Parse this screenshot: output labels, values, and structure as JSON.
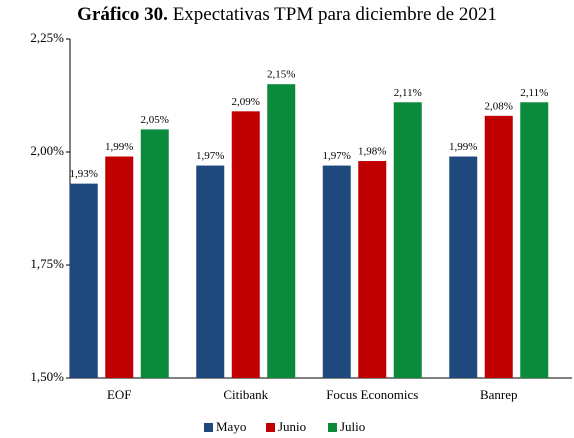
{
  "chart_data": {
    "type": "bar",
    "figure_label": "Gráfico 30.",
    "title": "Expectativas TPM para diciembre de 2021",
    "categories": [
      "EOF",
      "Citibank",
      "Focus Economics",
      "Banrep"
    ],
    "series": [
      {
        "name": "Mayo",
        "color": "#1f497d",
        "values": [
          1.93,
          1.97,
          1.97,
          1.99
        ],
        "value_labels": [
          "1,93%",
          "1,97%",
          "1,97%",
          "1,99%"
        ]
      },
      {
        "name": "Junio",
        "color": "#c00000",
        "values": [
          1.99,
          2.09,
          1.98,
          2.08
        ],
        "value_labels": [
          "1,99%",
          "2,09%",
          "1,98%",
          "2,08%"
        ]
      },
      {
        "name": "Julio",
        "color": "#0b8a3c",
        "values": [
          2.05,
          2.15,
          2.11,
          2.11
        ],
        "value_labels": [
          "2,05%",
          "2,15%",
          "2,11%",
          "2,11%"
        ]
      }
    ],
    "ylim": [
      1.5,
      2.25
    ],
    "yticks": [
      {
        "value": 1.5,
        "label": "1,50%"
      },
      {
        "value": 1.75,
        "label": "1,75%"
      },
      {
        "value": 2.0,
        "label": "2,00%"
      },
      {
        "value": 2.25,
        "label": "2,25%"
      }
    ],
    "legend": "bottom"
  }
}
